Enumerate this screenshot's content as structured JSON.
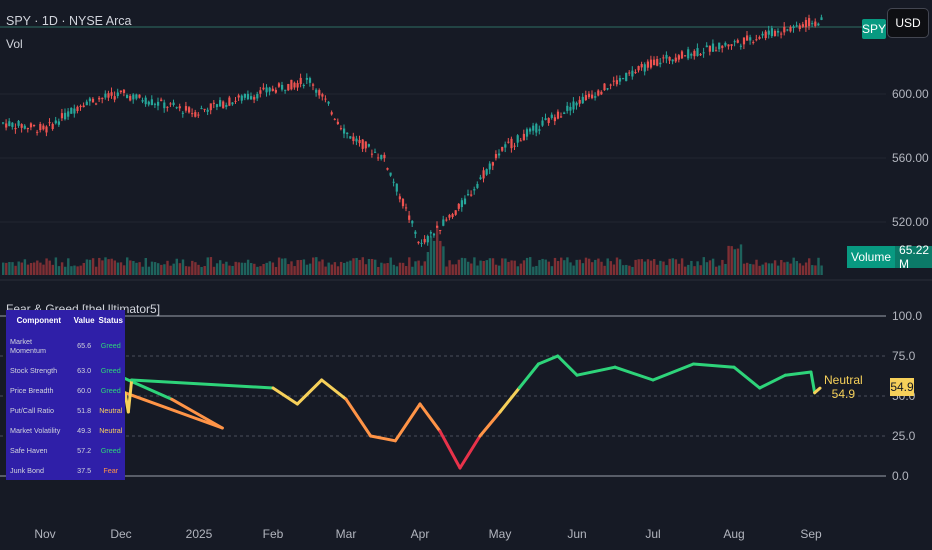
{
  "header": {
    "symbol_title": "SPY · 1D · NYSE Arca",
    "volume_label": "Vol",
    "indicator_title": "Fear & Greed [theUltimator5]",
    "symbol_badge": "SPY",
    "currency_badge": "USD"
  },
  "volume_readout": {
    "label": "Volume",
    "value": "65.22 M"
  },
  "indicator_readout": {
    "state": "Neutral",
    "value": "54.9"
  },
  "colors": {
    "background": "#161a25",
    "up": "#26a69a",
    "down": "#ef5350",
    "greed": "#2ed47a",
    "neutral": "#f6d05a",
    "fear": "#ff9447",
    "extreme_fear": "#e8324a",
    "table_bg": "#2f1fa8"
  },
  "table": {
    "headers": [
      "Component",
      "Value",
      "Status"
    ],
    "rows": [
      {
        "component": "Market Momentum",
        "value": "65.6",
        "status": "Greed"
      },
      {
        "component": "Stock Strength",
        "value": "63.0",
        "status": "Greed"
      },
      {
        "component": "Price Breadth",
        "value": "60.0",
        "status": "Greed"
      },
      {
        "component": "Put/Call Ratio",
        "value": "51.8",
        "status": "Neutral"
      },
      {
        "component": "Market Volatility",
        "value": "49.3",
        "status": "Neutral"
      },
      {
        "component": "Safe Haven",
        "value": "57.2",
        "status": "Greed"
      },
      {
        "component": "Junk Bond",
        "value": "37.5",
        "status": "Fear"
      }
    ]
  },
  "chart_data": [
    {
      "type": "line",
      "title": "SPY · 1D · NYSE Arca",
      "x_ticks": [
        "Nov",
        "Dec",
        "2025",
        "Feb",
        "Mar",
        "Apr",
        "May",
        "Jun",
        "Jul",
        "Aug",
        "Sep"
      ],
      "y_ticks": [
        520,
        560,
        600
      ],
      "ylim": [
        495,
        645
      ],
      "price_points": [
        {
          "x": "Oct",
          "y": 582
        },
        {
          "x": "Nov",
          "y": 578
        },
        {
          "x": "Nov",
          "y": 595
        },
        {
          "x": "Dec",
          "y": 600
        },
        {
          "x": "Dec",
          "y": 588
        },
        {
          "x": "2025",
          "y": 590
        },
        {
          "x": "Feb",
          "y": 603
        },
        {
          "x": "Feb",
          "y": 609
        },
        {
          "x": "Mar",
          "y": 575
        },
        {
          "x": "Mar",
          "y": 560
        },
        {
          "x": "Apr",
          "y": 505
        },
        {
          "x": "Apr",
          "y": 530
        },
        {
          "x": "May",
          "y": 565
        },
        {
          "x": "Jun",
          "y": 595
        },
        {
          "x": "Jul",
          "y": 620
        },
        {
          "x": "Aug",
          "y": 632
        },
        {
          "x": "Sep",
          "y": 645
        }
      ],
      "grid": true
    },
    {
      "type": "bar",
      "title": "Vol",
      "last_value": "65.22 M",
      "y_ticks": []
    },
    {
      "type": "line",
      "title": "Fear & Greed [theUltimator5]",
      "x_ticks": [
        "Nov",
        "Dec",
        "2025",
        "Feb",
        "Mar",
        "Apr",
        "May",
        "Jun",
        "Jul",
        "Aug",
        "Sep"
      ],
      "y_ticks": [
        0.0,
        25.0,
        50.0,
        75.0,
        100.0
      ],
      "ylim": [
        0,
        100
      ],
      "last_value": 54.9,
      "points": [
        {
          "x": "Nov",
          "y": 60
        },
        {
          "x": "Nov",
          "y": 63
        },
        {
          "x": "Dec",
          "y": 62
        },
        {
          "x": "Dec",
          "y": 48
        },
        {
          "x": "Dec",
          "y": 30
        },
        {
          "x": "2025",
          "y": 52
        },
        {
          "x": "2025",
          "y": 40
        },
        {
          "x": "2025",
          "y": 60
        },
        {
          "x": "Feb",
          "y": 55
        },
        {
          "x": "Feb",
          "y": 45
        },
        {
          "x": "Feb",
          "y": 60
        },
        {
          "x": "Mar",
          "y": 48
        },
        {
          "x": "Mar",
          "y": 25
        },
        {
          "x": "Mar",
          "y": 22
        },
        {
          "x": "Apr",
          "y": 45
        },
        {
          "x": "Apr",
          "y": 28
        },
        {
          "x": "Apr",
          "y": 5
        },
        {
          "x": "Apr",
          "y": 25
        },
        {
          "x": "May",
          "y": 40
        },
        {
          "x": "May",
          "y": 55
        },
        {
          "x": "May",
          "y": 70
        },
        {
          "x": "May",
          "y": 75
        },
        {
          "x": "Jun",
          "y": 63
        },
        {
          "x": "Jun",
          "y": 68
        },
        {
          "x": "Jul",
          "y": 60
        },
        {
          "x": "Jul",
          "y": 70
        },
        {
          "x": "Aug",
          "y": 68
        },
        {
          "x": "Aug",
          "y": 55
        },
        {
          "x": "Aug",
          "y": 63
        },
        {
          "x": "Sep",
          "y": 65
        },
        {
          "x": "Sep",
          "y": 52
        },
        {
          "x": "Sep",
          "y": 54.9
        }
      ],
      "grid": true
    }
  ]
}
